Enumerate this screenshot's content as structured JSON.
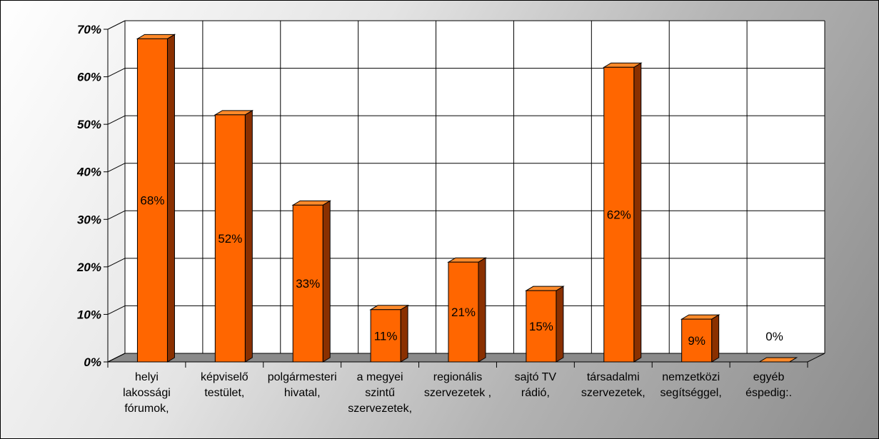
{
  "chart_data": {
    "type": "bar",
    "title": "",
    "categories": [
      [
        "helyi",
        "lakossági",
        "fórumok,"
      ],
      [
        "képviselő",
        "testület,"
      ],
      [
        "polgármesteri",
        "hivatal,"
      ],
      [
        "a megyei",
        "szintű",
        "szervezetek,"
      ],
      [
        "regionális",
        "szervezetek ,"
      ],
      [
        "sajtó TV",
        "rádió,"
      ],
      [
        "társadalmi",
        "szervezetek,"
      ],
      [
        "nemzetközi",
        "segítséggel,"
      ],
      [
        "egyéb",
        "éspedig:."
      ]
    ],
    "values": [
      68,
      52,
      33,
      11,
      21,
      15,
      62,
      9,
      0
    ],
    "data_labels": [
      "68%",
      "52%",
      "33%",
      "11%",
      "21%",
      "15%",
      "62%",
      "9%",
      "0%"
    ],
    "y_ticks": [
      "0%",
      "10%",
      "20%",
      "30%",
      "40%",
      "50%",
      "60%",
      "70%"
    ],
    "ylim": [
      0,
      70
    ],
    "grid": true,
    "xlabel": "",
    "ylabel": "",
    "colors": {
      "bar_front": "#ff6600",
      "bar_top": "#ff8a2a",
      "bar_side": "#8a3000",
      "bar_outline": "#000000",
      "floor": "#8a8a8a",
      "wall": "#ffffff",
      "grid": "#000000"
    }
  }
}
